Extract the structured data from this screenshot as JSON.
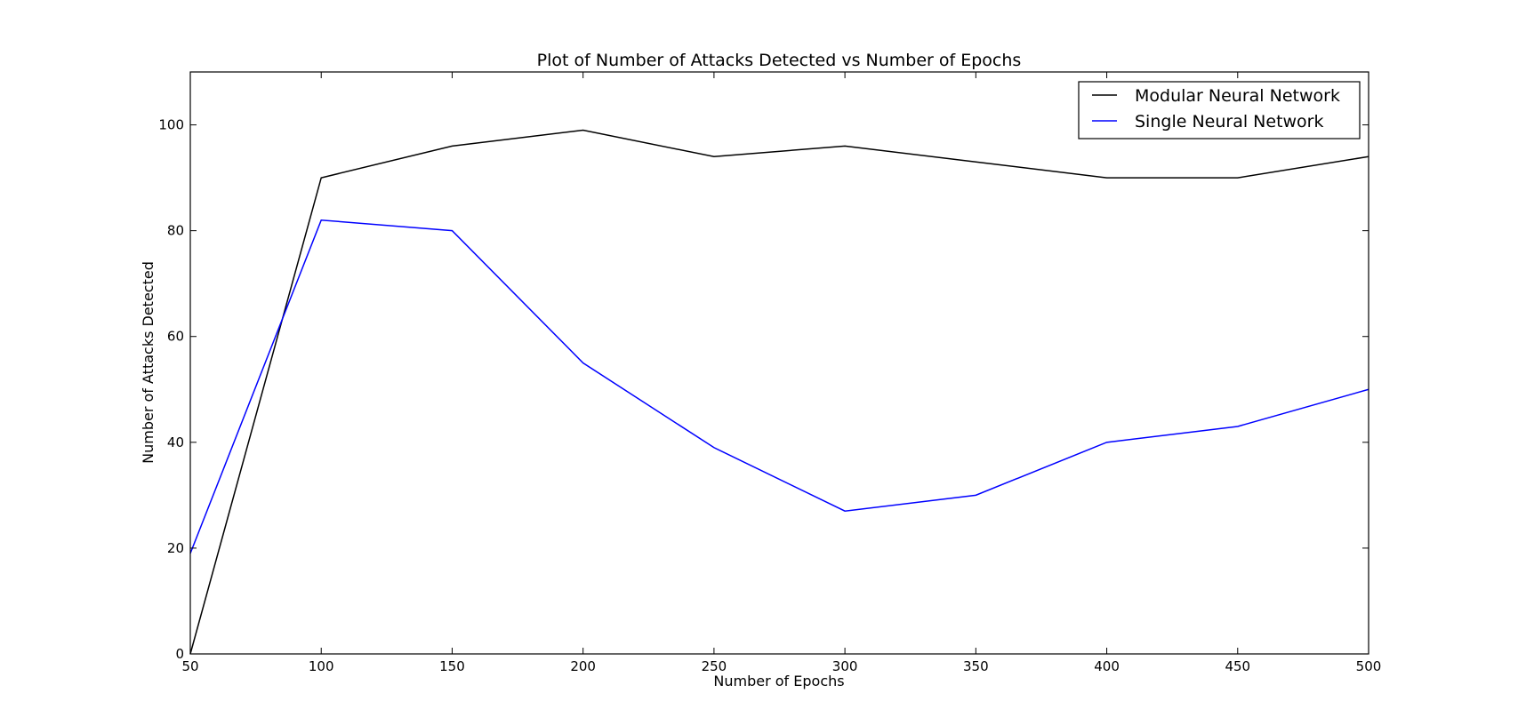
{
  "chart_data": {
    "type": "line",
    "title": "Plot of Number of Attacks Detected vs Number of Epochs",
    "xlabel": "Number of Epochs",
    "ylabel": "Number of Attacks Detected",
    "x": [
      50,
      100,
      150,
      200,
      250,
      300,
      350,
      400,
      450,
      500
    ],
    "xlim": [
      50,
      500
    ],
    "ylim": [
      0,
      110
    ],
    "xticks": [
      "50",
      "100",
      "150",
      "200",
      "250",
      "300",
      "350",
      "400",
      "450",
      "500"
    ],
    "yticks": [
      "0",
      "20",
      "40",
      "60",
      "80",
      "100"
    ],
    "grid": false,
    "legend_position": "top-right",
    "series": [
      {
        "name": "Modular Neural Network",
        "color": "#000000",
        "values": [
          0,
          90,
          96,
          99,
          94,
          96,
          93,
          90,
          90,
          94
        ]
      },
      {
        "name": "Single Neural Network",
        "color": "#0000ff",
        "values": [
          19,
          82,
          80,
          55,
          39,
          27,
          30,
          40,
          43,
          50
        ]
      }
    ]
  }
}
